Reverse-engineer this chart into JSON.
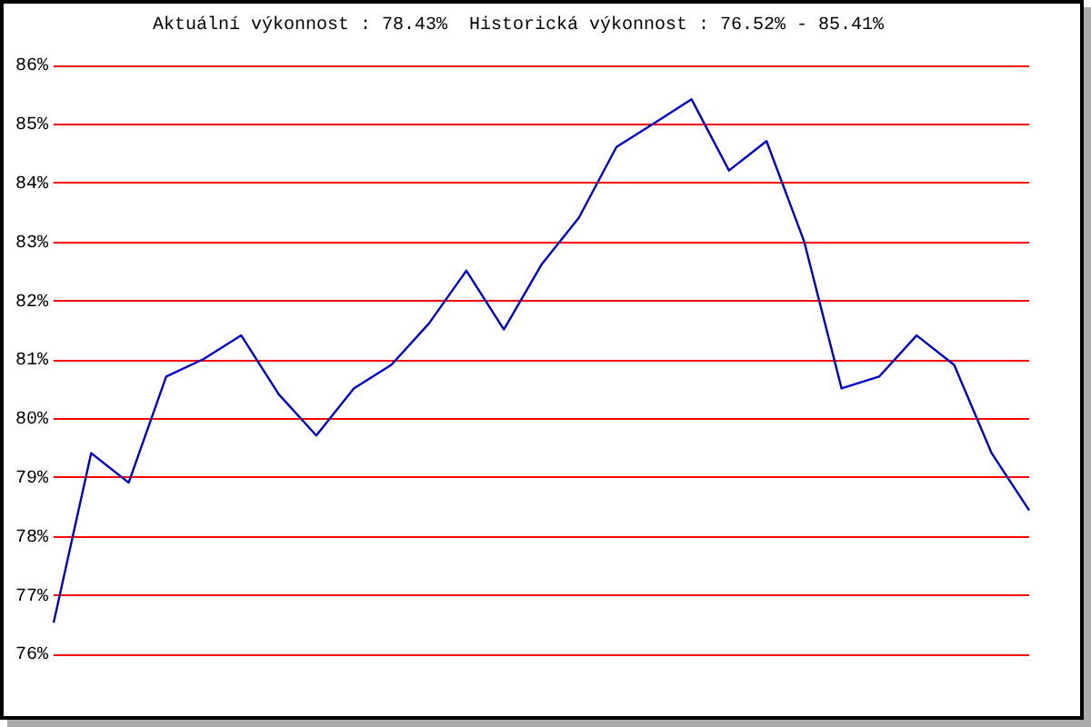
{
  "chart_data": {
    "type": "line",
    "title": "Aktuální výkonnost : 78.43%  Historická výkonnost : 76.52% - 85.41%",
    "categories": [
      null,
      null,
      null,
      null,
      null,
      null,
      null,
      null,
      null,
      null,
      null,
      null,
      null,
      null,
      null,
      null,
      null,
      null,
      null,
      null,
      null,
      null,
      null,
      null,
      null,
      null,
      null
    ],
    "series": [
      {
        "color": "#0000cc",
        "values": [
          76.52,
          79.4,
          78.9,
          80.7,
          81.0,
          81.4,
          80.4,
          79.7,
          80.5,
          80.9,
          81.6,
          82.5,
          81.5,
          82.6,
          83.4,
          84.6,
          85.0,
          85.41,
          84.2,
          84.7,
          83.0,
          80.5,
          80.7,
          81.4,
          80.9,
          79.4,
          78.43
        ]
      }
    ],
    "ylim": [
      76,
      86
    ],
    "yticks": [
      {
        "value": 76,
        "label": "76%"
      },
      {
        "value": 77,
        "label": "77%"
      },
      {
        "value": 78,
        "label": "78%"
      },
      {
        "value": 79,
        "label": "79%"
      },
      {
        "value": 80,
        "label": "80%"
      },
      {
        "value": 81,
        "label": "81%"
      },
      {
        "value": 82,
        "label": "82%"
      },
      {
        "value": 83,
        "label": "83%"
      },
      {
        "value": 84,
        "label": "84%"
      },
      {
        "value": 85,
        "label": "85%"
      },
      {
        "value": 86,
        "label": "86%"
      }
    ],
    "grid": "y",
    "tick_labels": "y"
  }
}
